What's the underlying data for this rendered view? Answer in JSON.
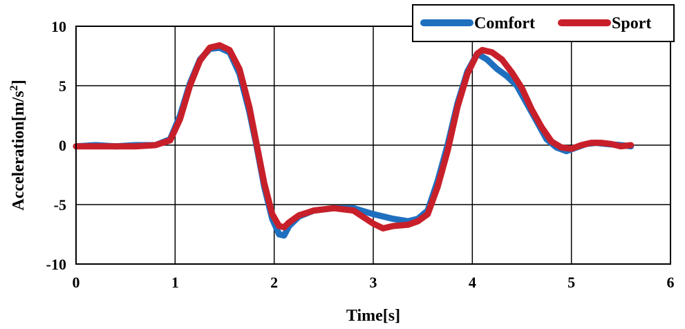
{
  "chart_data": {
    "type": "line",
    "xlabel": "Time[s]",
    "ylabel_main": "Acceleration[m/s",
    "ylabel_sup": "2",
    "ylabel_close": "]",
    "xlim": [
      0,
      6
    ],
    "ylim": [
      -10,
      10
    ],
    "xticks": [
      "0",
      "1",
      "2",
      "3",
      "4",
      "5",
      "6"
    ],
    "yticks": [
      "-10",
      "-5",
      "0",
      "5",
      "10"
    ],
    "grid": true,
    "legend_position": "top-right",
    "series": [
      {
        "name": "Comfort",
        "color": "#1f6fbf",
        "points": [
          [
            0,
            -0.1
          ],
          [
            0.2,
            0
          ],
          [
            0.4,
            -0.1
          ],
          [
            0.6,
            0
          ],
          [
            0.8,
            0
          ],
          [
            0.95,
            0.5
          ],
          [
            1.05,
            2.5
          ],
          [
            1.15,
            5.2
          ],
          [
            1.25,
            7.2
          ],
          [
            1.35,
            8.1
          ],
          [
            1.45,
            8.2
          ],
          [
            1.55,
            7.8
          ],
          [
            1.65,
            6.0
          ],
          [
            1.75,
            2.8
          ],
          [
            1.82,
            0
          ],
          [
            1.9,
            -3.5
          ],
          [
            1.98,
            -6.2
          ],
          [
            2.05,
            -7.5
          ],
          [
            2.1,
            -7.6
          ],
          [
            2.15,
            -6.8
          ],
          [
            2.25,
            -6.0
          ],
          [
            2.4,
            -5.5
          ],
          [
            2.6,
            -5.3
          ],
          [
            2.8,
            -5.3
          ],
          [
            3.0,
            -5.8
          ],
          [
            3.2,
            -6.2
          ],
          [
            3.35,
            -6.4
          ],
          [
            3.45,
            -6.2
          ],
          [
            3.55,
            -5.5
          ],
          [
            3.65,
            -3.0
          ],
          [
            3.75,
            0
          ],
          [
            3.85,
            3.5
          ],
          [
            3.95,
            6.2
          ],
          [
            4.05,
            7.7
          ],
          [
            4.15,
            7.2
          ],
          [
            4.25,
            6.4
          ],
          [
            4.35,
            5.8
          ],
          [
            4.45,
            5.0
          ],
          [
            4.55,
            3.5
          ],
          [
            4.65,
            2.0
          ],
          [
            4.75,
            0.5
          ],
          [
            4.85,
            -0.2
          ],
          [
            4.95,
            -0.5
          ],
          [
            5.05,
            -0.2
          ],
          [
            5.15,
            0.1
          ],
          [
            5.25,
            0.2
          ],
          [
            5.35,
            0.1
          ],
          [
            5.5,
            0
          ],
          [
            5.6,
            -0.1
          ]
        ]
      },
      {
        "name": "Sport",
        "color": "#c8202a",
        "points": [
          [
            0,
            -0.1
          ],
          [
            0.2,
            -0.1
          ],
          [
            0.4,
            -0.1
          ],
          [
            0.6,
            -0.1
          ],
          [
            0.8,
            0
          ],
          [
            0.95,
            0.4
          ],
          [
            1.05,
            2.2
          ],
          [
            1.15,
            5.0
          ],
          [
            1.25,
            7.1
          ],
          [
            1.35,
            8.2
          ],
          [
            1.45,
            8.4
          ],
          [
            1.55,
            8.0
          ],
          [
            1.65,
            6.4
          ],
          [
            1.75,
            3.2
          ],
          [
            1.82,
            0.2
          ],
          [
            1.9,
            -3.2
          ],
          [
            1.98,
            -5.8
          ],
          [
            2.05,
            -6.8
          ],
          [
            2.1,
            -6.9
          ],
          [
            2.15,
            -6.5
          ],
          [
            2.25,
            -5.9
          ],
          [
            2.4,
            -5.5
          ],
          [
            2.6,
            -5.3
          ],
          [
            2.8,
            -5.5
          ],
          [
            3.0,
            -6.6
          ],
          [
            3.1,
            -7.0
          ],
          [
            3.2,
            -6.8
          ],
          [
            3.35,
            -6.7
          ],
          [
            3.45,
            -6.4
          ],
          [
            3.55,
            -5.8
          ],
          [
            3.65,
            -3.5
          ],
          [
            3.75,
            -0.5
          ],
          [
            3.85,
            3.2
          ],
          [
            3.95,
            6.0
          ],
          [
            4.05,
            7.7
          ],
          [
            4.1,
            8.0
          ],
          [
            4.2,
            7.8
          ],
          [
            4.3,
            7.2
          ],
          [
            4.4,
            6.1
          ],
          [
            4.5,
            4.8
          ],
          [
            4.6,
            3.0
          ],
          [
            4.7,
            1.5
          ],
          [
            4.8,
            0.3
          ],
          [
            4.9,
            -0.2
          ],
          [
            5.0,
            -0.3
          ],
          [
            5.1,
            0
          ],
          [
            5.2,
            0.2
          ],
          [
            5.3,
            0.2
          ],
          [
            5.4,
            0.1
          ],
          [
            5.5,
            -0.1
          ],
          [
            5.6,
            0
          ]
        ]
      }
    ]
  }
}
